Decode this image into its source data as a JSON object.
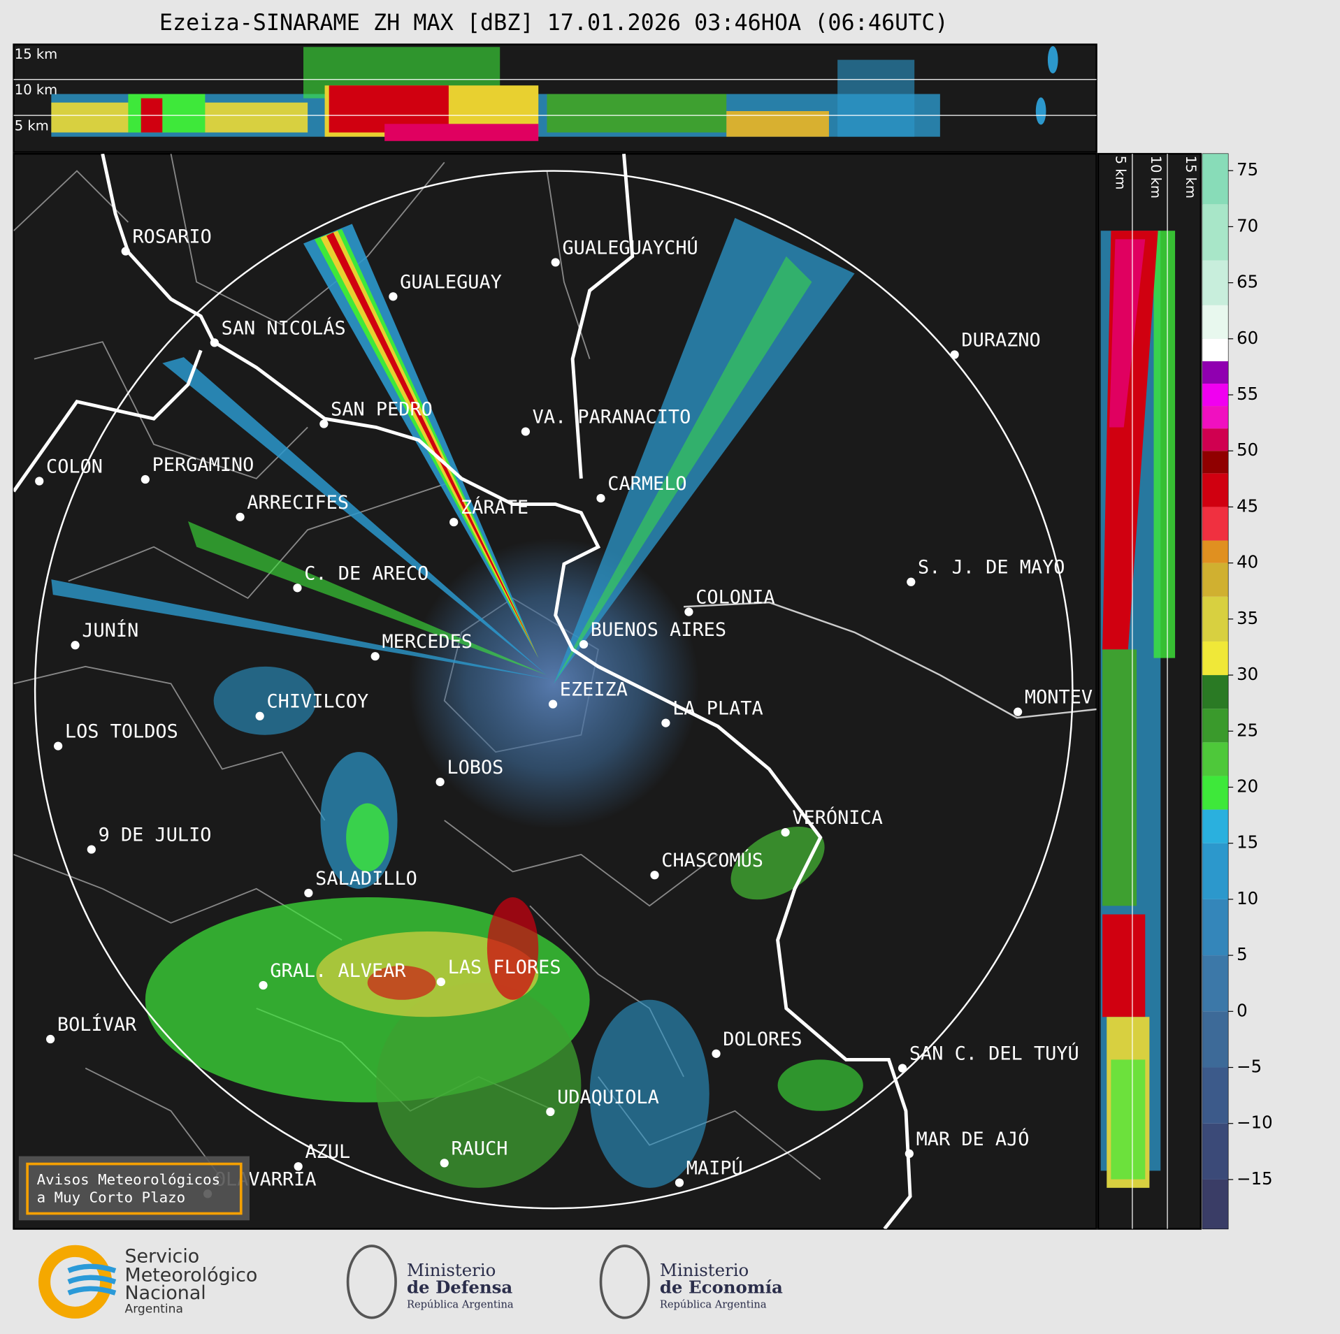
{
  "title": "Ezeiza-SINARAME ZH MAX [dBZ] 17.01.2026 03:46HOA (06:46UTC)",
  "top_panel_labels": [
    "15 km",
    "10 km",
    "5 km"
  ],
  "side_panel_labels": [
    "5 km",
    "10 km",
    "15 km"
  ],
  "cities": [
    "ROSARIO",
    "GUALEGUAYCHÚ",
    "GUALEGUAY",
    "SAN NICOLÁS",
    "DURAZNO",
    "SAN PEDRO",
    "VA. PARANACITO",
    "COLON",
    "PERGAMINO",
    "CARMELO",
    "ARRECIFES",
    "ZÁRATE",
    "S. J. DE MAYO",
    "C. DE ARECO",
    "COLONIA",
    "BUENOS AIRES",
    "JUNÍN",
    "MERCEDES",
    "EZEIZA",
    "MONTEV",
    "LA PLATA",
    "CHIVILCOY",
    "LOS TOLDOS",
    "LOBOS",
    "VERÓNICA",
    "9 DE JULIO",
    "CHASCOMÚS",
    "SALADILLO",
    "GRAL. ALVEAR",
    "LAS FLORES",
    "BOLÍVAR",
    "DOLORES",
    "SAN C. DEL TUYÚ",
    "UDAQUIOLA",
    "MAR DE AJÓ",
    "AZUL",
    "RAUCH",
    "MAIPÚ",
    "OLAVARRÍA"
  ],
  "colorbar": {
    "lim": [
      -19.4,
      76.5
    ],
    "ticks": [
      {
        "value": -15,
        "label": "−15"
      },
      {
        "value": -10,
        "label": "−10"
      },
      {
        "value": -5,
        "label": "−5"
      },
      0,
      5,
      10,
      15,
      20,
      25,
      30,
      35,
      40,
      45,
      50,
      55,
      60,
      65,
      70,
      75
    ],
    "bands": [
      {
        "from": -19.4,
        "to": -15,
        "color": "#3a3d66"
      },
      {
        "from": -15,
        "to": -10,
        "color": "#3b4a78"
      },
      {
        "from": -10,
        "to": -5,
        "color": "#3c5a8a"
      },
      {
        "from": -5,
        "to": 0,
        "color": "#3d6a98"
      },
      {
        "from": 0,
        "to": 5,
        "color": "#3c78a8"
      },
      {
        "from": 5,
        "to": 10,
        "color": "#3486ba"
      },
      {
        "from": 10,
        "to": 15,
        "color": "#2c98cc"
      },
      {
        "from": 15,
        "to": 18,
        "color": "#2ab0de"
      },
      {
        "from": 18,
        "to": 21,
        "color": "#3ee83a"
      },
      {
        "from": 21,
        "to": 24,
        "color": "#4ec83a"
      },
      {
        "from": 24,
        "to": 27,
        "color": "#3a9a2c"
      },
      {
        "from": 27,
        "to": 30,
        "color": "#2a7a24"
      },
      {
        "from": 30,
        "to": 33,
        "color": "#f0e838"
      },
      {
        "from": 33,
        "to": 37,
        "color": "#d8d040"
      },
      {
        "from": 37,
        "to": 40,
        "color": "#d0b030"
      },
      {
        "from": 40,
        "to": 42,
        "color": "#e09020"
      },
      {
        "from": 42,
        "to": 45,
        "color": "#f03040"
      },
      {
        "from": 45,
        "to": 48,
        "color": "#d00010"
      },
      {
        "from": 48,
        "to": 50,
        "color": "#900000"
      },
      {
        "from": 50,
        "to": 52,
        "color": "#d00050"
      },
      {
        "from": 52,
        "to": 54,
        "color": "#f010c0"
      },
      {
        "from": 54,
        "to": 56,
        "color": "#f000f0"
      },
      {
        "from": 56,
        "to": 58,
        "color": "#9000b0"
      },
      {
        "from": 58,
        "to": 60,
        "color": "#ffffff"
      },
      {
        "from": 60,
        "to": 63,
        "color": "#e8f8ee"
      },
      {
        "from": 63,
        "to": 67,
        "color": "#c8eedc"
      },
      {
        "from": 67,
        "to": 72,
        "color": "#a8e6c8"
      },
      {
        "from": 72,
        "to": 76.5,
        "color": "#88dcb8"
      }
    ]
  },
  "notice": [
    "Avisos Meteorológicos",
    "a Muy Corto Plazo"
  ],
  "logos": [
    {
      "lines": [
        "Servicio",
        "Meteorológico",
        "Nacional",
        "Argentina"
      ]
    },
    {
      "lines": [
        "Ministerio",
        "de Defensa",
        "República Argentina"
      ]
    },
    {
      "lines": [
        "Ministerio",
        "de Economía",
        "República Argentina"
      ]
    }
  ]
}
